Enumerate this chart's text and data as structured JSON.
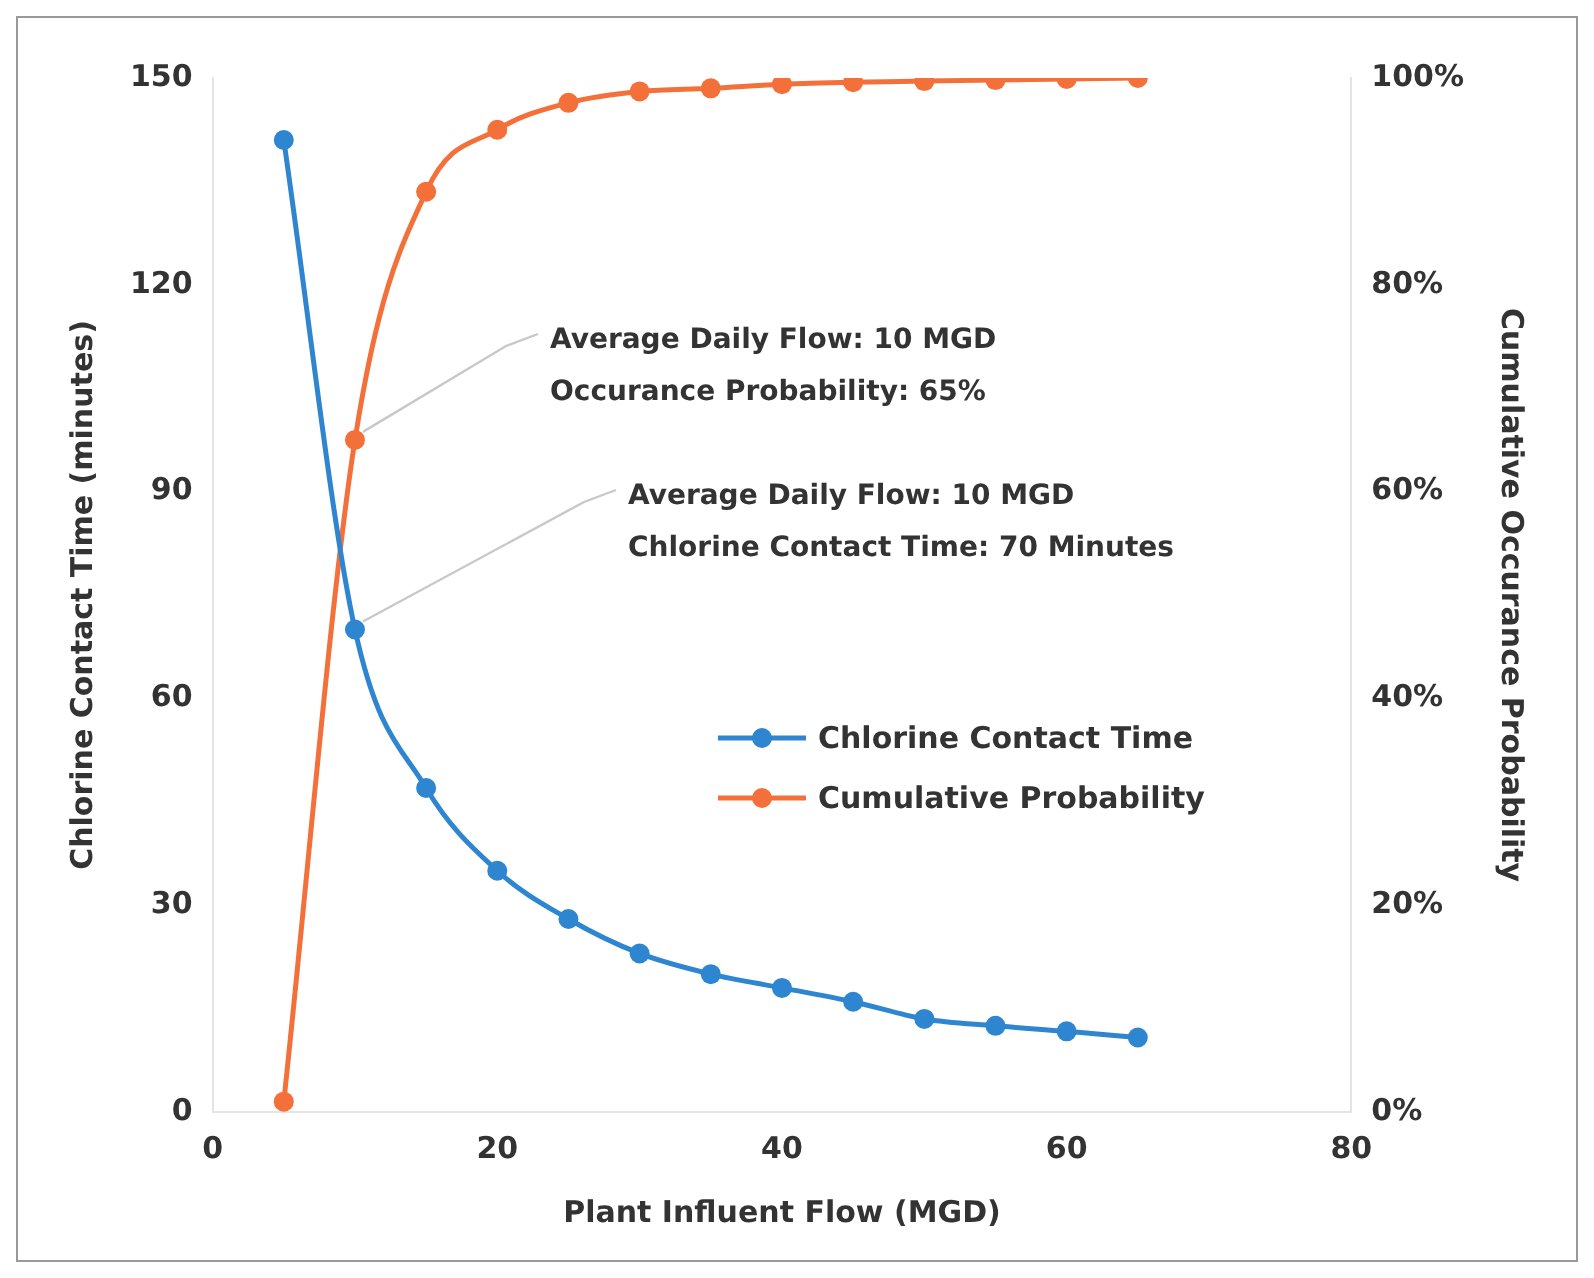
{
  "chart_data": {
    "type": "line",
    "xlabel": "Plant Influent Flow (MGD)",
    "ylabel": "Chlorine Contact Time (minutes)",
    "y2label": "Cumulative Occurance Probability",
    "x": [
      5,
      10,
      15,
      20,
      25,
      30,
      35,
      40,
      45,
      50,
      55,
      60,
      65
    ],
    "series": [
      {
        "name": "Chlorine Contact Time",
        "color": "#2e86d0",
        "values": [
          141,
          70,
          47,
          35,
          28,
          23,
          20,
          18,
          16,
          13.5,
          12.5,
          11.7,
          10.8
        ]
      },
      {
        "name": "Cumulative Probability",
        "color": "#f4703a",
        "axis": "y2",
        "values": [
          1,
          65,
          89,
          95,
          97.6,
          98.7,
          99,
          99.4,
          99.6,
          99.7,
          99.8,
          99.9,
          100
        ]
      }
    ],
    "xlim": [
      0,
      80
    ],
    "xticks": [
      0,
      20,
      40,
      60,
      80
    ],
    "ylim": [
      0,
      150
    ],
    "yticks": [
      0,
      30,
      60,
      90,
      120,
      150
    ],
    "y2lim": [
      0,
      100
    ],
    "y2ticks": [
      {
        "value": 0,
        "label": "0%"
      },
      {
        "value": 20,
        "label": "20%"
      },
      {
        "value": 40,
        "label": "40%"
      },
      {
        "value": 60,
        "label": "60%"
      },
      {
        "value": 80,
        "label": "80%"
      },
      {
        "value": 100,
        "label": "100%"
      }
    ],
    "annotations": [
      {
        "text": "Average Daily Flow: 10 MGD\nOccurance Probability: 65%",
        "x": 10,
        "y": 97.5
      },
      {
        "text": "Average Daily Flow: 10 MGD\nChlorine Contact Time: 70 Minutes",
        "x": 10,
        "y": 70
      }
    ],
    "marker": "circle",
    "line_style": "solid",
    "legend": "right"
  }
}
